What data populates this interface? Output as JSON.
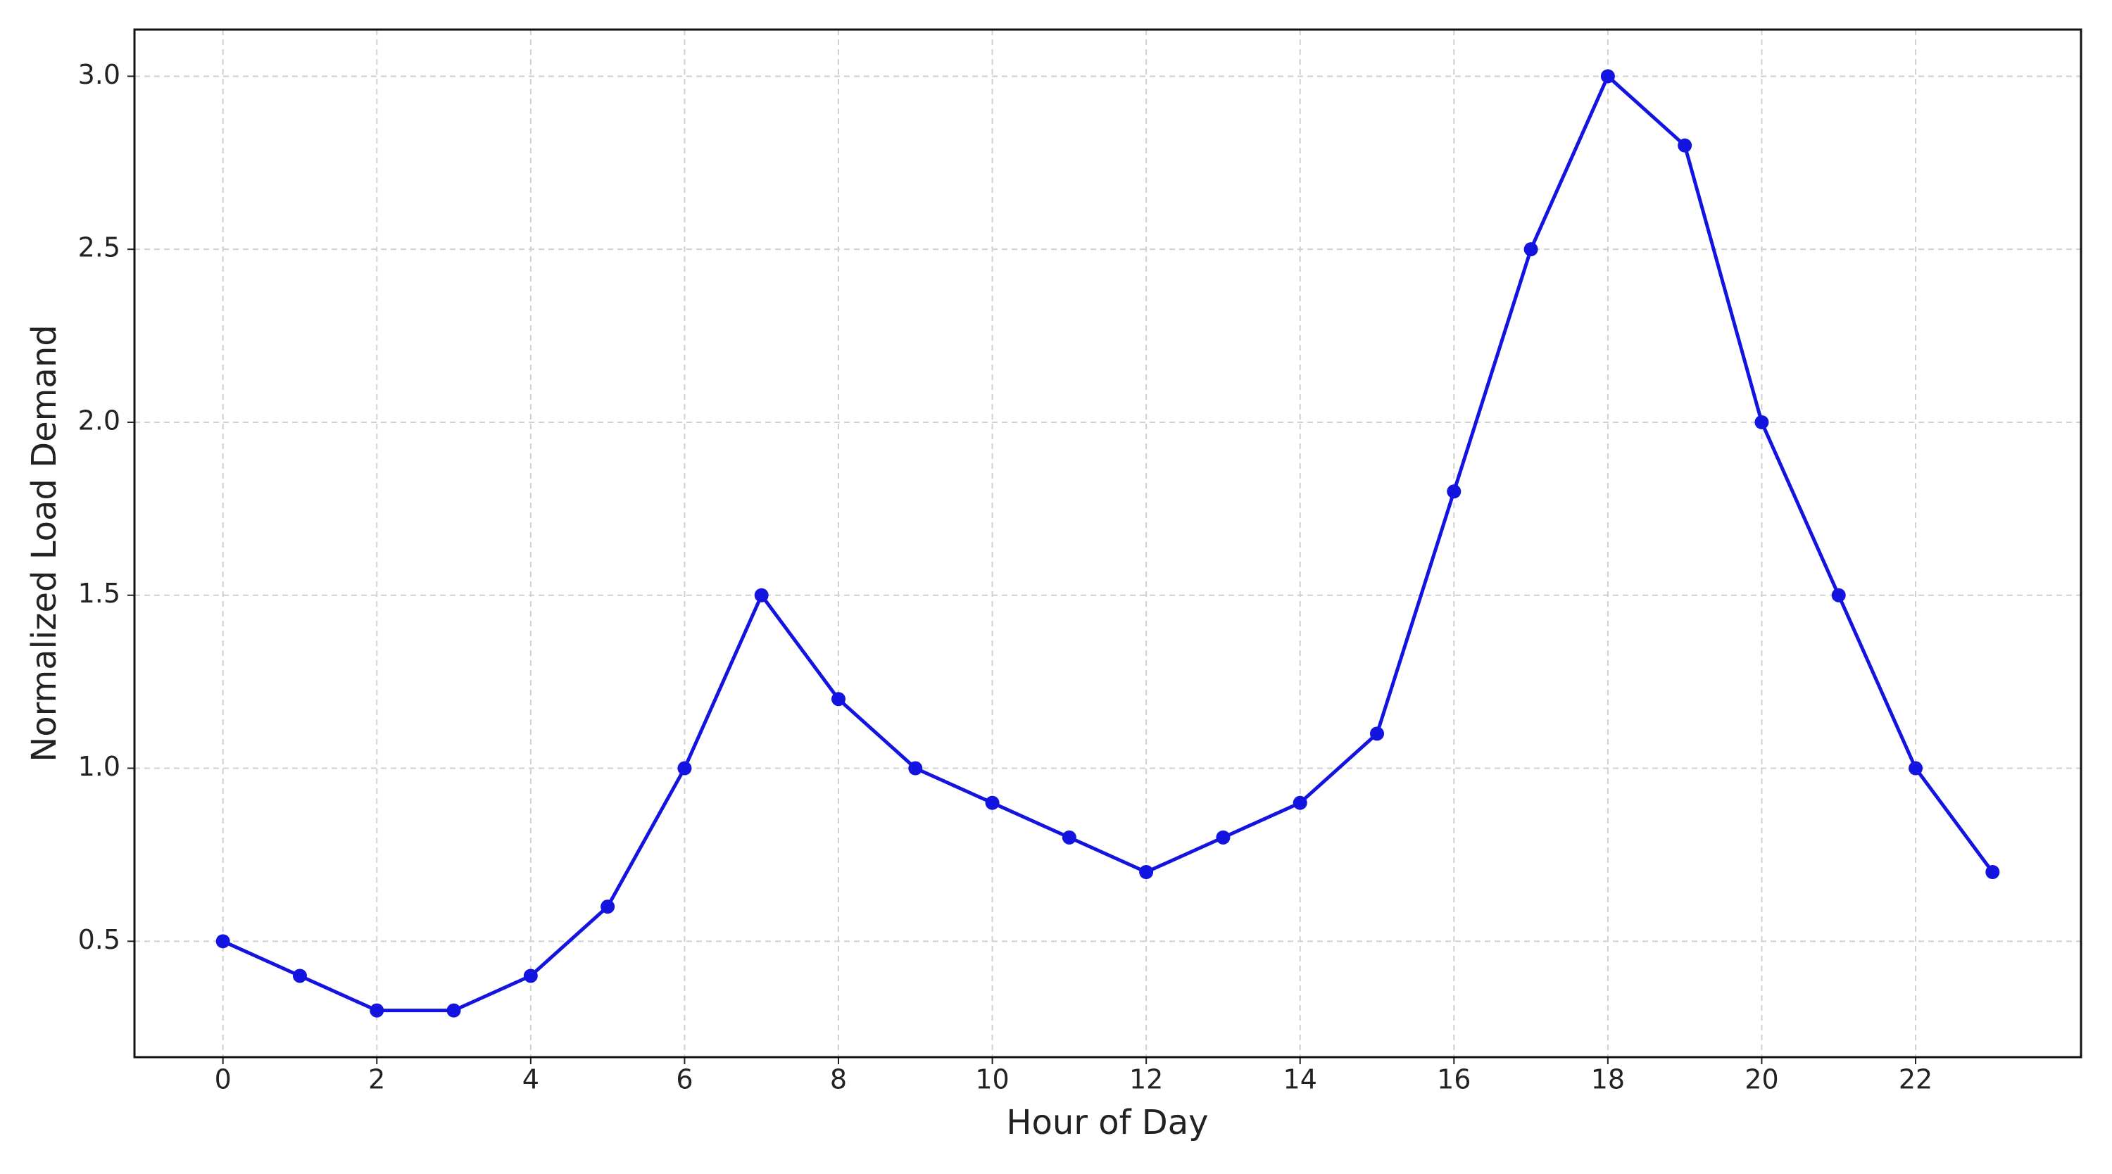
{
  "chart_data": {
    "type": "line",
    "xlabel": "Hour of Day",
    "ylabel": "Normalized Load Demand",
    "x": [
      0,
      1,
      2,
      3,
      4,
      5,
      6,
      7,
      8,
      9,
      10,
      11,
      12,
      13,
      14,
      15,
      16,
      17,
      18,
      19,
      20,
      21,
      22,
      23
    ],
    "values": [
      0.5,
      0.4,
      0.3,
      0.3,
      0.4,
      0.6,
      1.0,
      1.5,
      1.2,
      1.0,
      0.9,
      0.8,
      0.7,
      0.8,
      0.9,
      1.1,
      1.8,
      2.5,
      3.0,
      2.8,
      2.0,
      1.5,
      1.0,
      0.7
    ],
    "color": "#1414e0",
    "xlim": [
      -1.15,
      24.15
    ],
    "xticks": [
      0,
      2,
      4,
      6,
      8,
      10,
      12,
      14,
      16,
      18,
      20,
      22
    ],
    "ylim": [
      0.165,
      3.135
    ],
    "yticks": [
      0.5,
      {
        "value": 1,
        "label": "1.0"
      },
      1.5,
      {
        "value": 2,
        "label": "2.0"
      },
      2.5,
      {
        "value": 3,
        "label": "3.0"
      }
    ],
    "grid": true
  }
}
